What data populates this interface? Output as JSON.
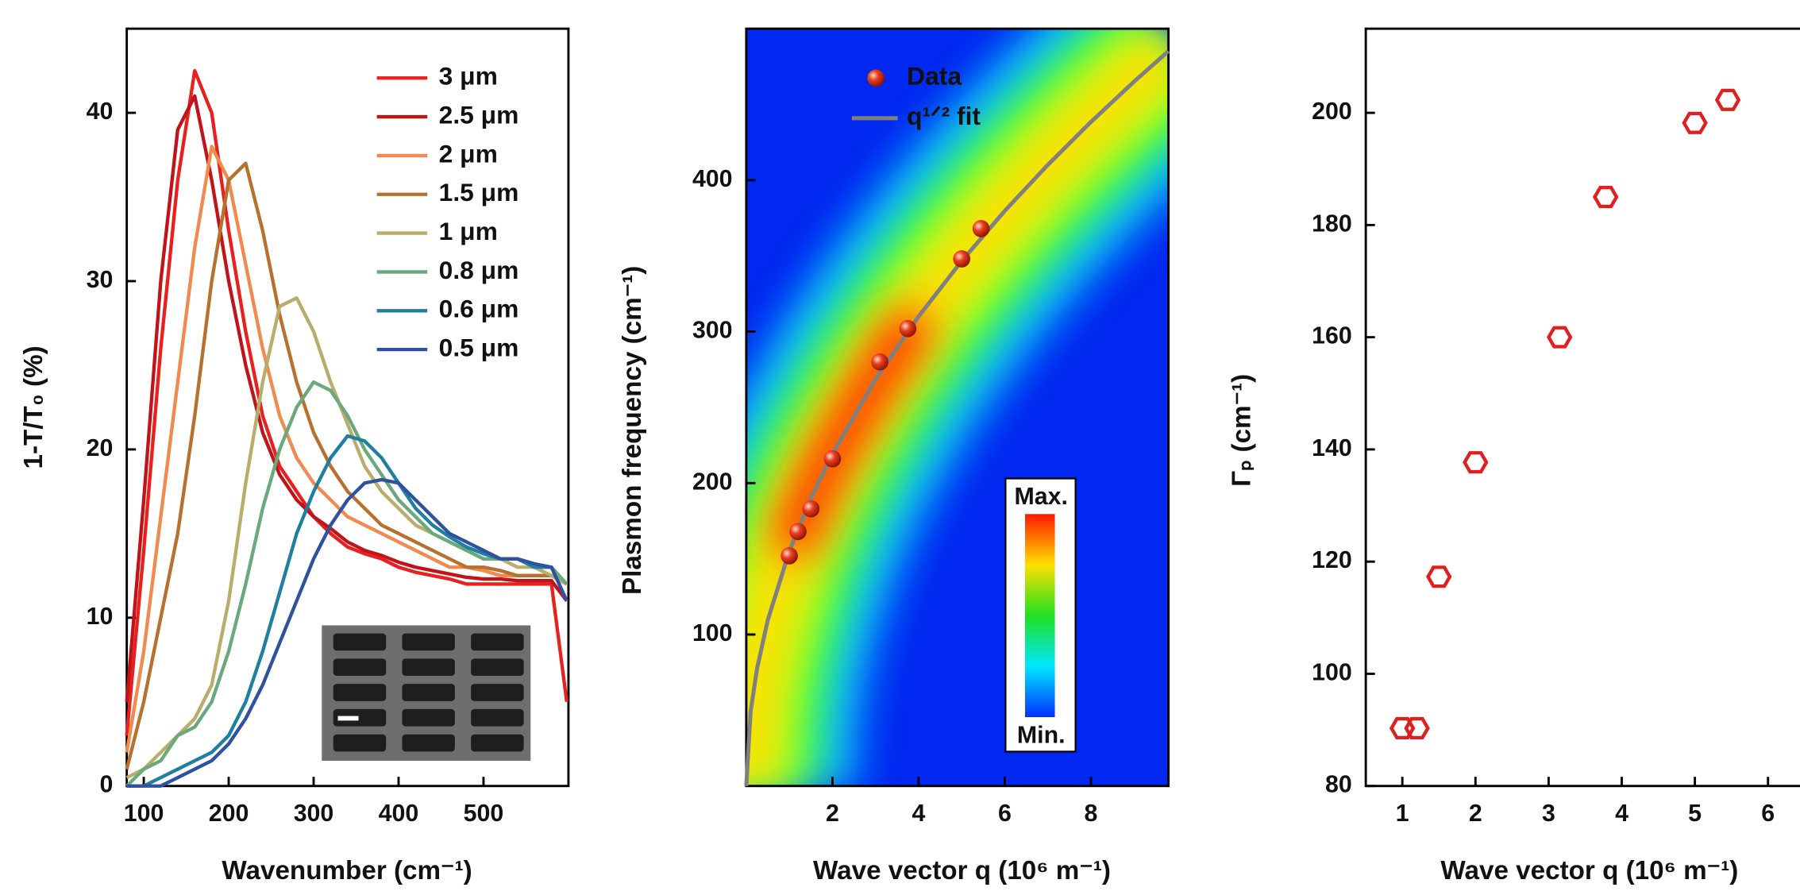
{
  "chart_data": [
    {
      "type": "line",
      "xlabel": "Wavenumber (cm⁻¹)",
      "ylabel": "1-T/T₀ (%)",
      "xlim": [
        80,
        600
      ],
      "ylim": [
        0,
        45
      ],
      "xticks": [
        100,
        200,
        300,
        400,
        500
      ],
      "yticks": [
        0,
        10,
        20,
        30,
        40
      ],
      "x": [
        80,
        100,
        120,
        140,
        160,
        180,
        200,
        220,
        240,
        260,
        280,
        300,
        320,
        340,
        360,
        380,
        400,
        420,
        440,
        460,
        480,
        500,
        520,
        540,
        560,
        580,
        598
      ],
      "series": [
        {
          "name": "3 μm",
          "color": "#e8201e",
          "values": [
            3,
            14,
            26,
            36,
            42.5,
            40,
            33,
            27,
            22,
            19,
            17.5,
            16,
            15,
            14.2,
            13.8,
            13.5,
            13,
            12.7,
            12.5,
            12.3,
            12,
            12,
            12,
            12,
            12,
            12,
            5
          ]
        },
        {
          "name": "2.5 μm",
          "color": "#c0141a",
          "values": [
            5,
            17,
            30,
            39,
            41,
            36,
            30,
            25,
            21,
            18.5,
            17,
            16,
            15.3,
            14.5,
            14,
            13.7,
            13.3,
            13,
            12.8,
            12.6,
            12.4,
            12.3,
            12.3,
            12.2,
            12.2,
            12.2,
            11
          ]
        },
        {
          "name": "2 μm",
          "color": "#f08a4e",
          "values": [
            2,
            8,
            16,
            24,
            32,
            38,
            36,
            31,
            26,
            22,
            19.5,
            18,
            17,
            16,
            15.5,
            15,
            14.5,
            14,
            13.5,
            13,
            13,
            12.8,
            12.5,
            12.5,
            12.5,
            12.5,
            12
          ]
        },
        {
          "name": "1.5 μm",
          "color": "#b8702e",
          "values": [
            1,
            5,
            10,
            15,
            22,
            30,
            36,
            37,
            33,
            28,
            24,
            21,
            19,
            17.5,
            16.5,
            15.5,
            15,
            14.5,
            14,
            13.5,
            13,
            13,
            12.8,
            12.5,
            12.5,
            12.5,
            12
          ]
        },
        {
          "name": "1 μm",
          "color": "#b8ad6a",
          "values": [
            0.5,
            1,
            2,
            3,
            4,
            6,
            11,
            18,
            24,
            28.5,
            29,
            27,
            24,
            21.5,
            19,
            17.5,
            16.5,
            15.5,
            15,
            14.5,
            14,
            13.5,
            13.5,
            13,
            13,
            12.5,
            12
          ]
        },
        {
          "name": "0.8 μm",
          "color": "#6aa87e",
          "values": [
            0,
            1,
            1.5,
            3,
            3.5,
            5,
            8,
            12,
            16.5,
            20,
            22.5,
            24,
            23.5,
            22,
            20,
            18.5,
            17,
            16,
            15,
            14.5,
            14,
            13.5,
            13.5,
            13.5,
            13,
            13,
            12
          ]
        },
        {
          "name": "0.6 μm",
          "color": "#1e7fa0",
          "values": [
            0,
            0,
            0.5,
            1,
            1.5,
            2,
            3,
            5,
            8,
            11.5,
            15,
            17.5,
            19.5,
            20.8,
            20.5,
            19.5,
            18,
            16.5,
            15.5,
            14.8,
            14.2,
            13.8,
            13.5,
            13.5,
            13,
            13,
            11
          ]
        },
        {
          "name": "0.5 μm",
          "color": "#3050a0",
          "values": [
            0,
            0,
            0,
            0.5,
            1,
            1.5,
            2.5,
            4,
            6,
            8.5,
            11,
            13.5,
            15.5,
            17,
            18,
            18.2,
            18,
            17,
            16,
            15,
            14.5,
            14,
            13.5,
            13.5,
            13.2,
            13,
            11
          ]
        }
      ]
    },
    {
      "type": "scatter",
      "xlabel": "Wave vector q (10⁶ m⁻¹)",
      "ylabel": "Plasmon frequency (cm⁻¹)",
      "xlim": [
        0,
        9.8
      ],
      "ylim": [
        0,
        500
      ],
      "xticks": [
        2,
        4,
        6,
        8
      ],
      "yticks": [
        100,
        200,
        300,
        400
      ],
      "colorbar_labels": [
        "Max.",
        "Min."
      ],
      "series": [
        {
          "name": "Data",
          "color": "#d83020",
          "mode": "markers",
          "x": [
            1.0,
            1.2,
            1.5,
            2.0,
            3.1,
            3.75,
            5.0,
            5.45
          ],
          "values": [
            152,
            168,
            183,
            216,
            280,
            302,
            348,
            368
          ]
        },
        {
          "name": "q¹ᐟ² fit",
          "color": "#808080",
          "mode": "line",
          "x": [
            0,
            0.1,
            0.25,
            0.5,
            1,
            1.5,
            2,
            3,
            4,
            5,
            6,
            7,
            8,
            9,
            9.8
          ],
          "values": [
            0,
            49,
            77.5,
            109.6,
            155,
            189.8,
            219.2,
            268.5,
            310,
            346.6,
            379.7,
            410.1,
            438.4,
            465,
            485.2
          ]
        }
      ]
    },
    {
      "type": "scatter",
      "xlabel": "Wave vector q (10⁶ m⁻¹)",
      "ylabel": "Γₚ (cm⁻¹)",
      "xlim": [
        0.5,
        6.9
      ],
      "ylim": [
        80,
        215
      ],
      "xticks": [
        1,
        2,
        3,
        4,
        5,
        6
      ],
      "yticks": [
        80,
        100,
        120,
        140,
        160,
        180,
        200
      ],
      "color": "#e02020",
      "x": [
        1.0,
        1.2,
        1.5,
        2.0,
        3.15,
        3.78,
        5.0,
        5.45
      ],
      "values": [
        90.3,
        90.3,
        117.3,
        137.7,
        160,
        185,
        198.2,
        202.3
      ]
    }
  ]
}
